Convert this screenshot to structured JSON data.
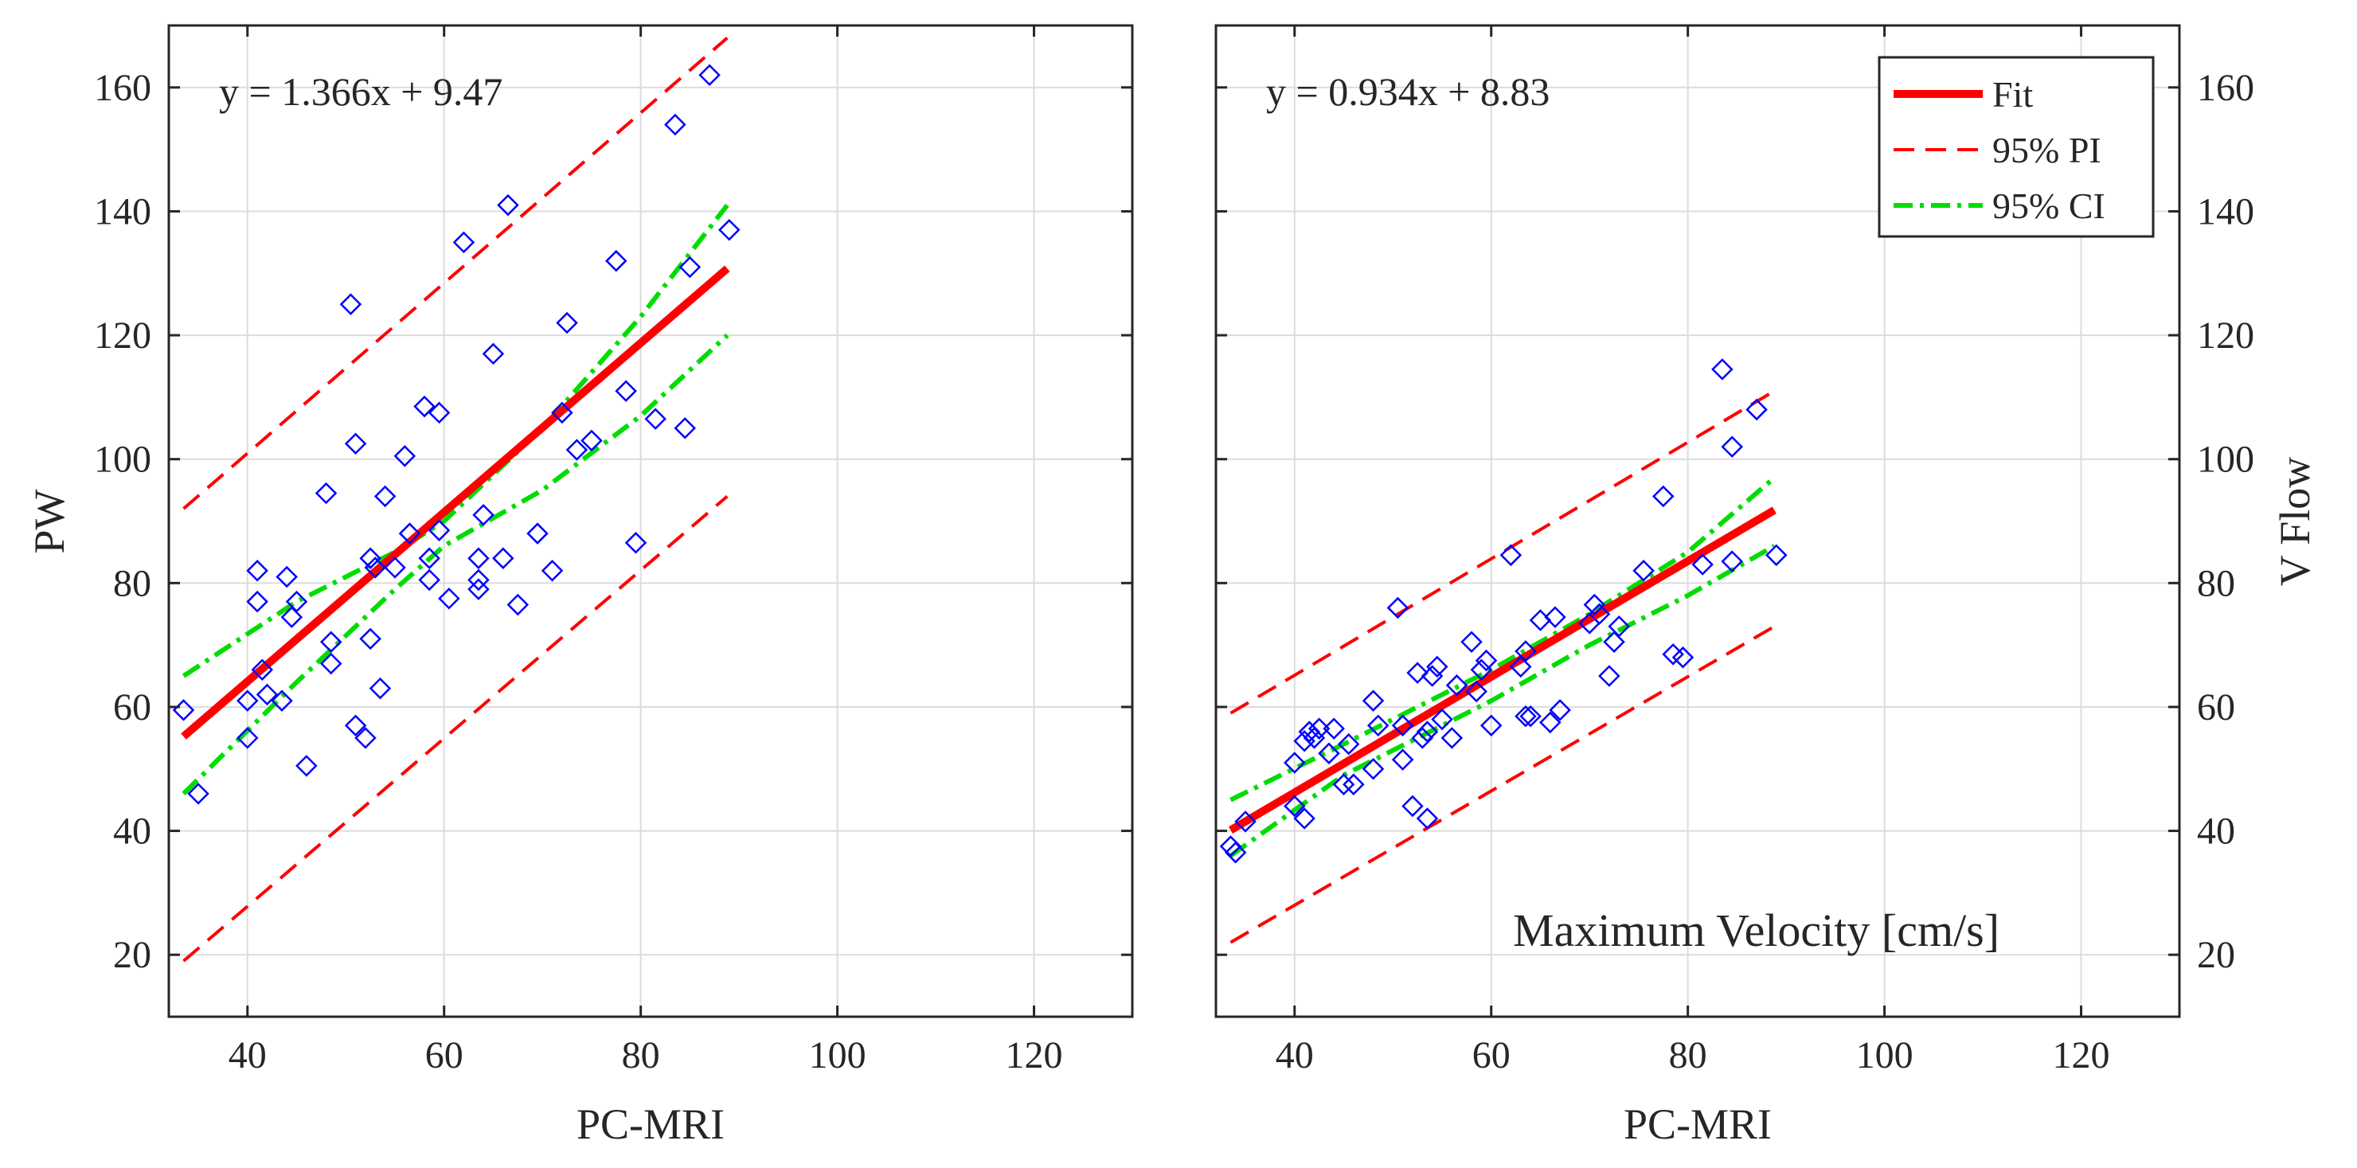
{
  "chart_data": [
    {
      "type": "scatter",
      "panel": "left",
      "xlabel": "PC-MRI",
      "ylabel": "PW",
      "xlim": [
        32,
        130
      ],
      "ylim": [
        10,
        170
      ],
      "xticks": [
        40,
        60,
        80,
        100,
        120
      ],
      "yticks": [
        20,
        40,
        60,
        80,
        100,
        120,
        140,
        160
      ],
      "y_axis_side": "left",
      "grid": true,
      "annotation": "y = 1.366x + 9.47",
      "fit": {
        "slope": 1.366,
        "intercept": 9.47,
        "x_range": [
          33.5,
          88.8
        ]
      },
      "pi_upper": [
        [
          33.5,
          92
        ],
        [
          88.8,
          168
        ]
      ],
      "pi_lower": [
        [
          33.5,
          19
        ],
        [
          88.8,
          94
        ]
      ],
      "ci_upper": [
        [
          33.5,
          65
        ],
        [
          45,
          77
        ],
        [
          55,
          85
        ],
        [
          60,
          90
        ],
        [
          70,
          105
        ],
        [
          80,
          123
        ],
        [
          88.8,
          141
        ]
      ],
      "ci_lower": [
        [
          33.5,
          46
        ],
        [
          45,
          64
        ],
        [
          55,
          79
        ],
        [
          60,
          86
        ],
        [
          70,
          95
        ],
        [
          80,
          107
        ],
        [
          88.8,
          120
        ]
      ],
      "points": [
        [
          33.5,
          59.5
        ],
        [
          35,
          46
        ],
        [
          40,
          61
        ],
        [
          40,
          55
        ],
        [
          41,
          82
        ],
        [
          41,
          77
        ],
        [
          41.5,
          66
        ],
        [
          42,
          62
        ],
        [
          43.5,
          61
        ],
        [
          44,
          81
        ],
        [
          44.5,
          74.5
        ],
        [
          45,
          77
        ],
        [
          46,
          50.5
        ],
        [
          48,
          94.5
        ],
        [
          48.5,
          70.5
        ],
        [
          48.5,
          67
        ],
        [
          50.5,
          125
        ],
        [
          51,
          102.5
        ],
        [
          51,
          57
        ],
        [
          52,
          55
        ],
        [
          52.5,
          84
        ],
        [
          52.5,
          71
        ],
        [
          53,
          82.5
        ],
        [
          53.5,
          63
        ],
        [
          54,
          94
        ],
        [
          55,
          82.5
        ],
        [
          56,
          100.5
        ],
        [
          56.5,
          88
        ],
        [
          58,
          108.5
        ],
        [
          58.5,
          84
        ],
        [
          58.5,
          80.5
        ],
        [
          59.5,
          107.5
        ],
        [
          59.5,
          88.5
        ],
        [
          60.5,
          77.5
        ],
        [
          62,
          135
        ],
        [
          63.5,
          84
        ],
        [
          63.5,
          79
        ],
        [
          63.5,
          80.5
        ],
        [
          64,
          91
        ],
        [
          65,
          117
        ],
        [
          66,
          84
        ],
        [
          66.5,
          141
        ],
        [
          67.5,
          76.5
        ],
        [
          69.5,
          88
        ],
        [
          71,
          82
        ],
        [
          72,
          107.5
        ],
        [
          72.5,
          122
        ],
        [
          73.5,
          101.5
        ],
        [
          75,
          103
        ],
        [
          77.5,
          132
        ],
        [
          78.5,
          111
        ],
        [
          79.5,
          86.5
        ],
        [
          81.5,
          106.5
        ],
        [
          83.5,
          154
        ],
        [
          84.5,
          105
        ],
        [
          85,
          131
        ],
        [
          87,
          162
        ],
        [
          89,
          137
        ]
      ],
      "series": [
        {
          "name": "Data",
          "color": "#0000ff",
          "marker": "diamond"
        },
        {
          "name": "Fit",
          "color": "#ff0000",
          "style": "solid"
        },
        {
          "name": "95% PI",
          "color": "#ff0000",
          "style": "dashed"
        },
        {
          "name": "95% CI",
          "color": "#00dd00",
          "style": "dash-dot"
        }
      ]
    },
    {
      "type": "scatter",
      "panel": "right",
      "xlabel": "PC-MRI",
      "ylabel": "V Flow",
      "xlim": [
        32,
        130
      ],
      "ylim": [
        10,
        170
      ],
      "xticks": [
        40,
        60,
        80,
        100,
        120
      ],
      "yticks": [
        20,
        40,
        60,
        80,
        100,
        120,
        140,
        160
      ],
      "y_axis_side": "right",
      "grid": true,
      "annotation": "y = 0.934x + 8.83",
      "corner_label": "Maximum Velocity [cm/s]",
      "fit": {
        "slope": 0.934,
        "intercept": 8.83,
        "x_range": [
          33.5,
          88.8
        ]
      },
      "pi_upper": [
        [
          33.5,
          59
        ],
        [
          88.8,
          111
        ]
      ],
      "pi_lower": [
        [
          33.5,
          22
        ],
        [
          88.8,
          73
        ]
      ],
      "ci_upper": [
        [
          33.5,
          45
        ],
        [
          45,
          54
        ],
        [
          55,
          62
        ],
        [
          60,
          66
        ],
        [
          70,
          75
        ],
        [
          80,
          85
        ],
        [
          88.8,
          97
        ]
      ],
      "ci_lower": [
        [
          33.5,
          36
        ],
        [
          45,
          49
        ],
        [
          55,
          57
        ],
        [
          60,
          61
        ],
        [
          70,
          70
        ],
        [
          80,
          78
        ],
        [
          88.8,
          86
        ]
      ],
      "points": [
        [
          33.5,
          37.5
        ],
        [
          34,
          36.5
        ],
        [
          35,
          41.5
        ],
        [
          40,
          51
        ],
        [
          40,
          44
        ],
        [
          41,
          42
        ],
        [
          41,
          54.5
        ],
        [
          41.5,
          56
        ],
        [
          42,
          55
        ],
        [
          42.5,
          56.5
        ],
        [
          43.5,
          52.5
        ],
        [
          44,
          56.5
        ],
        [
          45,
          47.5
        ],
        [
          45.5,
          54
        ],
        [
          46,
          47.5
        ],
        [
          48,
          61
        ],
        [
          48,
          50
        ],
        [
          48.5,
          57
        ],
        [
          50.5,
          76
        ],
        [
          51,
          51.5
        ],
        [
          51,
          57
        ],
        [
          52,
          44
        ],
        [
          52.5,
          65.5
        ],
        [
          53,
          55
        ],
        [
          53.5,
          56
        ],
        [
          53.5,
          42
        ],
        [
          54,
          65
        ],
        [
          54.5,
          66.5
        ],
        [
          55,
          58
        ],
        [
          56,
          55
        ],
        [
          56.5,
          63.5
        ],
        [
          58,
          70.5
        ],
        [
          58.5,
          62.5
        ],
        [
          59,
          66
        ],
        [
          59.5,
          67.5
        ],
        [
          60,
          57
        ],
        [
          62,
          84.5
        ],
        [
          63,
          66.5
        ],
        [
          63.5,
          69
        ],
        [
          63.5,
          58.5
        ],
        [
          64,
          58.5
        ],
        [
          65,
          74
        ],
        [
          66,
          57.5
        ],
        [
          66.5,
          74.5
        ],
        [
          67,
          59.5
        ],
        [
          70,
          73.5
        ],
        [
          70.5,
          76.5
        ],
        [
          71,
          75
        ],
        [
          72,
          65
        ],
        [
          72.5,
          70.5
        ],
        [
          73,
          73
        ],
        [
          75.5,
          82
        ],
        [
          77.5,
          94
        ],
        [
          78.5,
          68.5
        ],
        [
          79.5,
          68
        ],
        [
          81.5,
          83
        ],
        [
          83.5,
          114.5
        ],
        [
          84.5,
          102
        ],
        [
          84.5,
          83.5
        ],
        [
          87,
          108
        ],
        [
          89,
          84.5
        ]
      ],
      "series": [
        {
          "name": "Data",
          "color": "#0000ff",
          "marker": "diamond"
        },
        {
          "name": "Fit",
          "color": "#ff0000",
          "style": "solid"
        },
        {
          "name": "95% PI",
          "color": "#ff0000",
          "style": "dashed"
        },
        {
          "name": "95% CI",
          "color": "#00dd00",
          "style": "dash-dot"
        }
      ],
      "legend": {
        "position": "top-right",
        "entries": [
          "Fit",
          "95% PI",
          "95% CI"
        ]
      }
    }
  ]
}
